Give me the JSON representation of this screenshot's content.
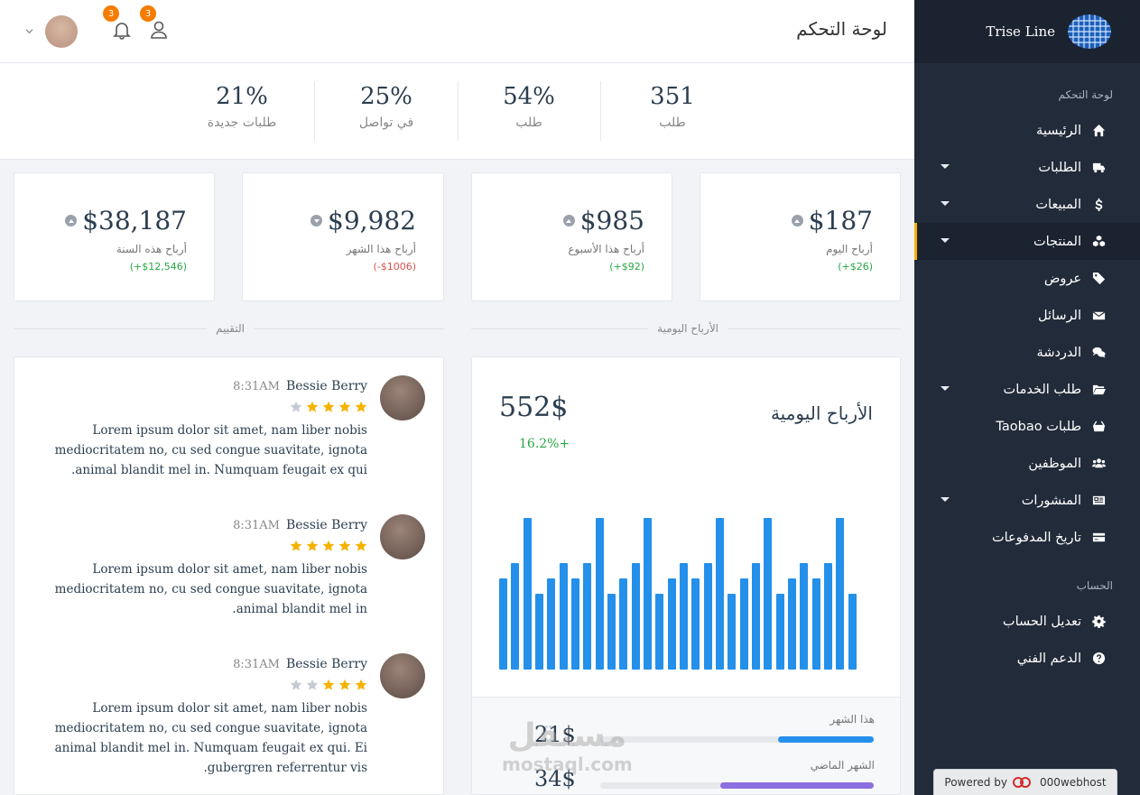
{
  "sidebar": {
    "brand": "Trise Line",
    "section_main": "لوحة التحكم",
    "section_account": "الحساب",
    "items": [
      {
        "label": "الرئيسية",
        "icon": "home-icon"
      },
      {
        "label": "الطلبات",
        "icon": "truck-icon"
      },
      {
        "label": "المبيعات",
        "icon": "dollar-icon"
      },
      {
        "label": "المنتجات",
        "icon": "cubes-icon"
      },
      {
        "label": "عروض",
        "icon": "tag-icon"
      },
      {
        "label": "الرسائل",
        "icon": "envelope-icon"
      },
      {
        "label": "الدردشة",
        "icon": "comments-icon"
      },
      {
        "label": "طلب الخدمات",
        "icon": "folder-open-icon"
      },
      {
        "label": "Taobao طلبات",
        "icon": "basket-icon"
      },
      {
        "label": "الموظفين",
        "icon": "users-icon"
      },
      {
        "label": "المنشورات",
        "icon": "newspaper-icon"
      },
      {
        "label": "تاريخ المدفوعات",
        "icon": "credit-card-icon"
      }
    ],
    "account_items": [
      {
        "label": "تعديل الحساب",
        "icon": "gear-icon"
      },
      {
        "label": "الدعم الفني",
        "icon": "question-icon"
      }
    ],
    "powered_by": "Powered by",
    "powered_brand": "000webhost"
  },
  "header": {
    "title": "لوحة التحكم",
    "notifications_count": "3",
    "users_count": "3"
  },
  "stats": [
    {
      "value": "351",
      "label": "طلب"
    },
    {
      "value": "54%",
      "label": "طلب"
    },
    {
      "value": "25%",
      "label": "في تواصل"
    },
    {
      "value": "21%",
      "label": "طلبات جديدة"
    }
  ],
  "profits": [
    {
      "value": "$187",
      "label": "أرباح اليوم",
      "change": "(+$26)",
      "trend": "up"
    },
    {
      "value": "$985",
      "label": "أرباح هذا الأسبوع",
      "change": "(+$92)",
      "trend": "up"
    },
    {
      "value": "$9,982",
      "label": "أرباح هذا الشهر",
      "change": "(-$1006)",
      "trend": "down"
    },
    {
      "value": "$38,187",
      "label": "أرباح هذه السنة",
      "change": "(+$12,546)",
      "trend": "up"
    }
  ],
  "sections": {
    "daily_profits": "الأرباح اليومية",
    "rating": "التقييم"
  },
  "reviews": [
    {
      "name": "Bessie Berry",
      "time": "8:31AM",
      "rating": 4,
      "text": "Lorem ipsum dolor sit amet, nam liber nobis mediocritatem no, cu sed congue suavitate, ignota animal blandit mel in. Numquam feugait ex qui."
    },
    {
      "name": "Bessie Berry",
      "time": "8:31AM",
      "rating": 5,
      "text": "Lorem ipsum dolor sit amet, nam liber nobis mediocritatem no, cu sed congue suavitate, ignota animal blandit mel in."
    },
    {
      "name": "Bessie Berry",
      "time": "8:31AM",
      "rating": 3,
      "text": "Lorem ipsum dolor sit amet, nam liber nobis mediocritatem no, cu sed congue suavitate, ignota animal blandit mel in. Numquam feugait ex qui. Ei gubergren referrentur vis."
    }
  ],
  "daily_chart": {
    "title": "الأرباح اليومية",
    "total": "552$",
    "change": "16.2%+",
    "this_month_label": "هذا الشهر",
    "this_month_value": "21$",
    "this_month_progress": 0.35,
    "last_month_label": "الشهر الماضي",
    "last_month_value": "34$",
    "last_month_progress": 0.56,
    "colors": {
      "bar": "#2490ea",
      "this_month": "#2490ea",
      "last_month": "#8c6fe0"
    }
  },
  "chart_data": {
    "type": "bar",
    "title": "الأرباح اليومية",
    "values": [
      6,
      7,
      10,
      5,
      6,
      7,
      6,
      7,
      10,
      5,
      6,
      7,
      10,
      5,
      6,
      7,
      6,
      7,
      10,
      5,
      6,
      7,
      10,
      5,
      6,
      7,
      6,
      7,
      10,
      5
    ],
    "ylim": [
      0,
      10
    ],
    "grid": false,
    "legend": "none"
  },
  "watermark": {
    "arabic": "مستقل",
    "latin": "mostaql.com"
  }
}
